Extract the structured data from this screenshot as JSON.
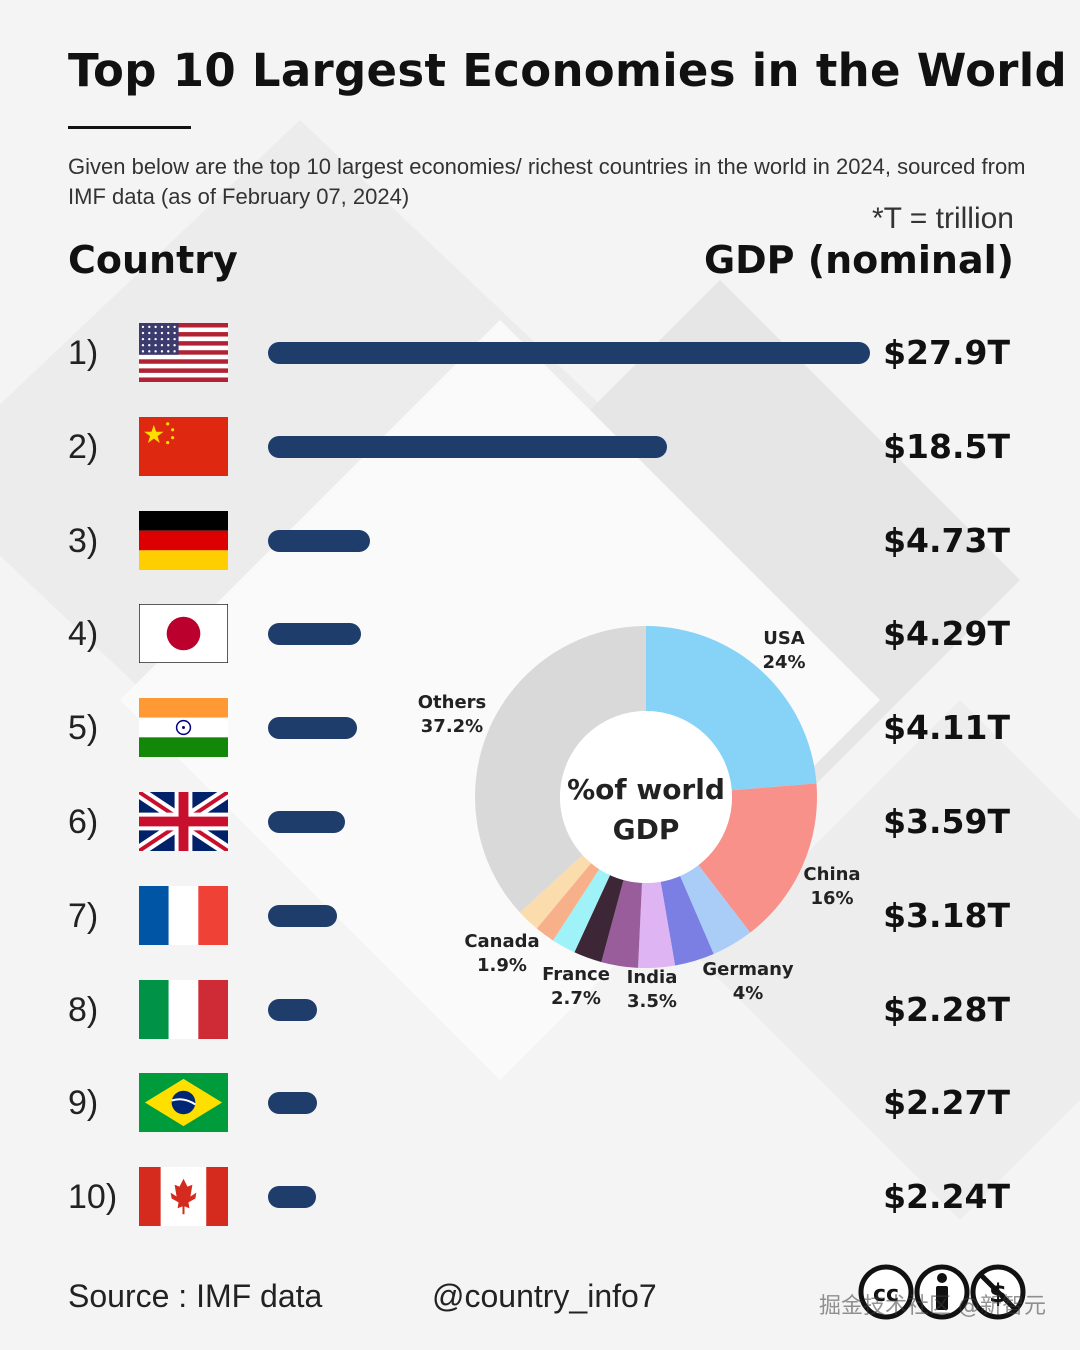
{
  "title": "Top 10 Largest Economies in the World",
  "subtitle": "Given below are the top 10 largest economies/ richest countries in the world in 2024, sourced from IMF data (as of February 07, 2024)",
  "unit_note": "*T = trillion",
  "columns": {
    "country": "Country",
    "gdp": "GDP (nominal)"
  },
  "colors": {
    "bar": "#1e3d6b",
    "background": "#f4f4f4",
    "text": "#111111"
  },
  "chart_data": [
    {
      "type": "bar",
      "orientation": "horizontal",
      "categories": [
        "1)",
        "2)",
        "3)",
        "4)",
        "5)",
        "6)",
        "7)",
        "8)",
        "9)",
        "10)"
      ],
      "flags": [
        "flag-usa-icon",
        "flag-china-icon",
        "flag-germany-icon",
        "flag-japan-icon",
        "flag-india-icon",
        "flag-uk-icon",
        "flag-france-icon",
        "flag-italy-icon",
        "flag-brazil-icon",
        "flag-canada-icon"
      ],
      "values": [
        27.9,
        18.5,
        4.73,
        4.29,
        4.11,
        3.59,
        3.18,
        2.28,
        2.27,
        2.24
      ],
      "value_labels": [
        "$27.9T",
        "$18.5T",
        "$4.73T",
        "$4.29T",
        "$4.11T",
        "$3.59T",
        "$3.18T",
        "$2.28T",
        "$2.27T",
        "$2.24T"
      ],
      "xlim": [
        0,
        27.9
      ],
      "grid": false
    },
    {
      "type": "pie",
      "style": "donut",
      "center_label": [
        "%of world",
        "GDP"
      ],
      "slices": [
        {
          "label": "USA",
          "display": "24%",
          "value": 24,
          "color": "#87d3f8"
        },
        {
          "label": "China",
          "display": "16%",
          "value": 16,
          "color": "#f7918a"
        },
        {
          "label": "Germany",
          "display": "4%",
          "value": 4,
          "color": "#a9cdf7"
        },
        {
          "label": "",
          "display": "",
          "value": 3.8,
          "color": "#7b7ee3"
        },
        {
          "label": "India",
          "display": "3.5%",
          "value": 3.5,
          "color": "#deb4f2"
        },
        {
          "label": "",
          "display": "",
          "value": 3.5,
          "color": "#9a5d9c"
        },
        {
          "label": "France",
          "display": "2.7%",
          "value": 2.7,
          "color": "#3d2737"
        },
        {
          "label": "",
          "display": "",
          "value": 2.3,
          "color": "#9ff2f7"
        },
        {
          "label": "Canada",
          "display": "1.9%",
          "value": 1.9,
          "color": "#f8b08a"
        },
        {
          "label": "",
          "display": "",
          "value": 2.2,
          "color": "#fbdcad"
        },
        {
          "label": "Others",
          "display": "37.2%",
          "value": 37.2,
          "color": "#d9d9d9"
        }
      ]
    }
  ],
  "footer": {
    "source": "Source : IMF data",
    "handle": "@country_info7",
    "license_icons": [
      "cc-icon",
      "attribution-icon",
      "noncommercial-icon"
    ],
    "watermark": "掘金技术社区 @新智元"
  }
}
